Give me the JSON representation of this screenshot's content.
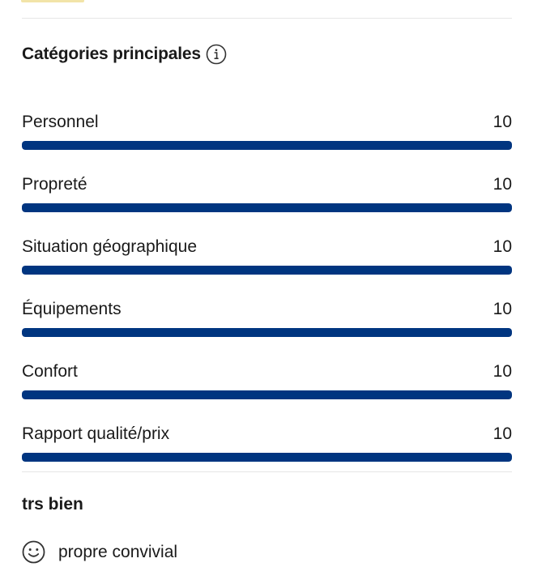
{
  "section": {
    "title": "Catégories principales",
    "info_icon": "info-circle-icon"
  },
  "categories": [
    {
      "label": "Personnel",
      "score": "10",
      "fraction": 1.0
    },
    {
      "label": "Propreté",
      "score": "10",
      "fraction": 1.0
    },
    {
      "label": "Situation géographique",
      "score": "10",
      "fraction": 1.0
    },
    {
      "label": "Équipements",
      "score": "10",
      "fraction": 1.0
    },
    {
      "label": "Confort",
      "score": "10",
      "fraction": 1.0
    },
    {
      "label": "Rapport qualité/prix",
      "score": "10",
      "fraction": 1.0
    }
  ],
  "review": {
    "title": "trs bien",
    "positive_icon": "smile-icon",
    "positive_text": "propre convivial"
  },
  "colors": {
    "bar_fill": "#003580",
    "bar_track": "#e7e7e7",
    "divider": "#e6e6e6",
    "accent": "#f2e4a8"
  }
}
